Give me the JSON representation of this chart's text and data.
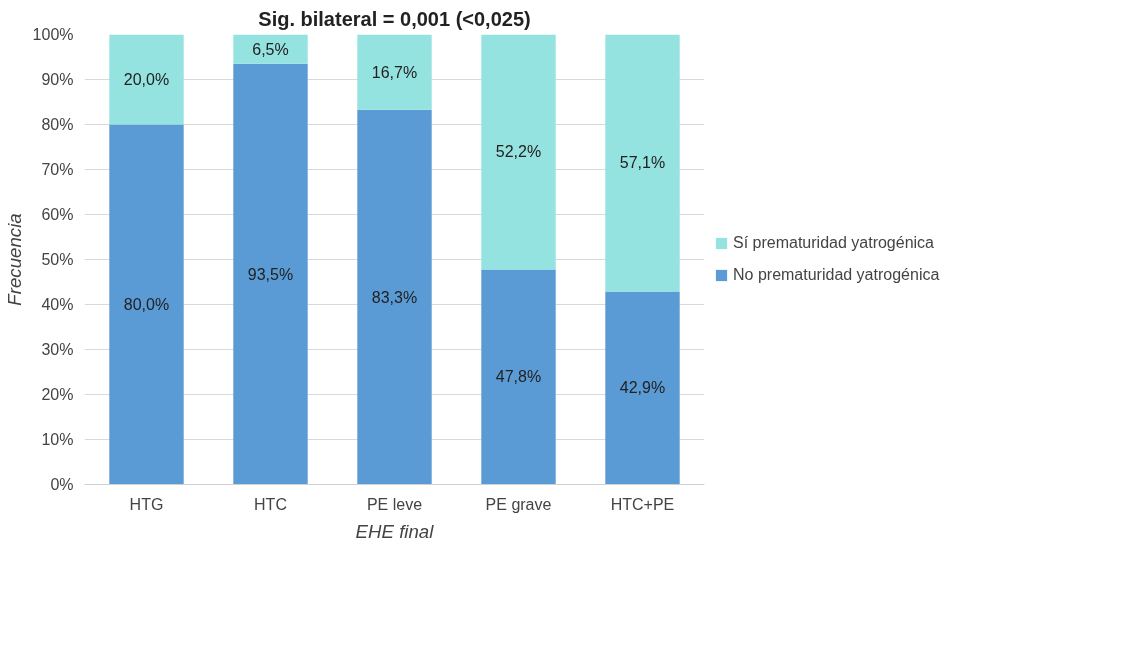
{
  "chart_data": {
    "type": "bar",
    "title": "Sig. bilateral = 0,001 (<0,025)",
    "xlabel": "EHE final",
    "ylabel": "Frecuencia",
    "categories": [
      "HTG",
      "HTC",
      "PE leve",
      "PE grave",
      "HTC+PE"
    ],
    "stacked": true,
    "series": [
      {
        "name": "No prematuridad yatrogénica",
        "color": "#5b9bd5",
        "values": [
          80.0,
          93.5,
          83.3,
          47.8,
          42.9
        ],
        "value_labels": [
          "80,0%",
          "93,5%",
          "83,3%",
          "47,8%",
          "42,9%"
        ]
      },
      {
        "name": "Sí prematuridad yatrogénica",
        "color": "#94e3e0",
        "values": [
          20.0,
          6.5,
          16.7,
          52.2,
          57.1
        ],
        "value_labels": [
          "20,0%",
          "6,5%",
          "16,7%",
          "52,2%",
          "57,1%"
        ]
      }
    ],
    "ylim": [
      0,
      100
    ],
    "yticks": [
      {
        "value": 0,
        "label": "0%"
      },
      {
        "value": 10,
        "label": "10%"
      },
      {
        "value": 20,
        "label": "20%"
      },
      {
        "value": 30,
        "label": "30%"
      },
      {
        "value": 40,
        "label": "40%"
      },
      {
        "value": 50,
        "label": "50%"
      },
      {
        "value": 60,
        "label": "60%"
      },
      {
        "value": 70,
        "label": "70%"
      },
      {
        "value": 80,
        "label": "80%"
      },
      {
        "value": 90,
        "label": "90%"
      },
      {
        "value": 100,
        "label": "100%"
      }
    ],
    "grid": "y",
    "legend": "right"
  }
}
